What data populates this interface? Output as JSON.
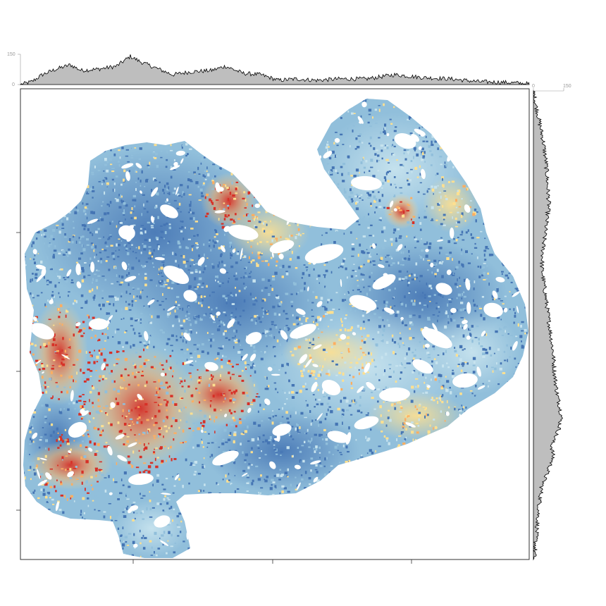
{
  "map": {
    "type": "raster",
    "colors": {
      "background": "#ffffff",
      "frame": "#333333",
      "histogram_fill": "#bebebe",
      "histogram_line": "#000000",
      "tick": "#999999",
      "palette": [
        "#4575b4",
        "#91bfdb",
        "#c7e3ee",
        "#fee090",
        "#fdae61",
        "#d73027"
      ]
    }
  },
  "chart_data": [
    {
      "type": "area",
      "name": "top-marginal-histogram",
      "ticks": [
        "0",
        "150"
      ],
      "ylim": [
        0,
        150
      ]
    },
    {
      "type": "area",
      "name": "right-marginal-histogram",
      "ticks": [
        "0",
        "150"
      ],
      "xlim": [
        0,
        150
      ]
    }
  ]
}
